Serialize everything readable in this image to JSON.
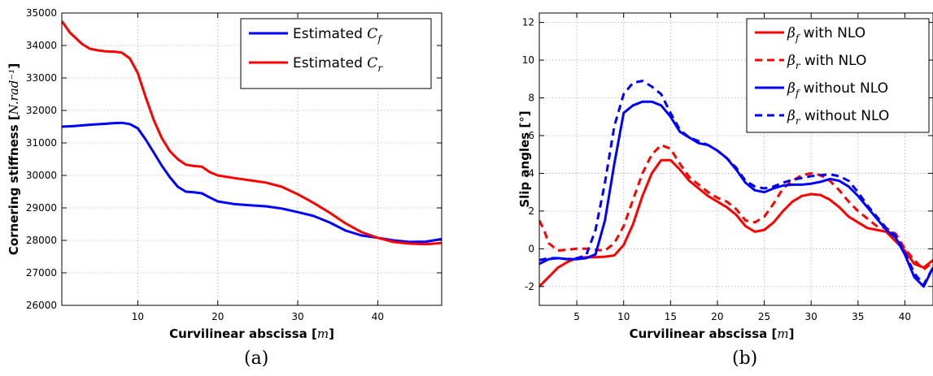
{
  "chart_data": [
    {
      "type": "line",
      "panel_label": "(a)",
      "xlabel": "Curvilinear abscissa  [m]",
      "ylabel": "Cornering stiffness [N.rad⁻¹]",
      "xlim": [
        0.5,
        48
      ],
      "ylim": [
        26000,
        35000
      ],
      "xticks": [
        10,
        20,
        30,
        40
      ],
      "yticks": [
        26000,
        27000,
        28000,
        29000,
        30000,
        31000,
        32000,
        33000,
        34000,
        35000
      ],
      "grid": true,
      "legend_position": "top-right",
      "series": [
        {
          "name": "Estimated C_f",
          "color": "#0000ff",
          "style": "solid",
          "x": [
            0.5,
            2,
            4,
            6,
            7,
            8,
            9,
            10,
            11,
            12,
            13,
            14,
            15,
            16,
            17,
            18,
            19,
            20,
            22,
            24,
            26,
            28,
            30,
            32,
            34,
            36,
            38,
            40,
            42,
            44,
            46,
            48
          ],
          "y": [
            31500,
            31520,
            31560,
            31590,
            31610,
            31620,
            31580,
            31450,
            31100,
            30700,
            30300,
            29950,
            29650,
            29500,
            29480,
            29450,
            29320,
            29200,
            29120,
            29080,
            29050,
            28980,
            28870,
            28750,
            28550,
            28300,
            28150,
            28080,
            28000,
            27950,
            27960,
            28040
          ]
        },
        {
          "name": "Estimated C_r",
          "color": "#ff0000",
          "style": "solid",
          "x": [
            0.5,
            1.5,
            3,
            4,
            5,
            6,
            7,
            8,
            9,
            10,
            11,
            12,
            13,
            14,
            15,
            16,
            17,
            18,
            19,
            20,
            22,
            24,
            26,
            28,
            30,
            32,
            34,
            36,
            38,
            40,
            42,
            44,
            46,
            48
          ],
          "y": [
            34750,
            34400,
            34050,
            33900,
            33850,
            33820,
            33810,
            33780,
            33600,
            33150,
            32400,
            31700,
            31150,
            30750,
            30500,
            30330,
            30290,
            30270,
            30100,
            30000,
            29920,
            29850,
            29780,
            29650,
            29420,
            29150,
            28850,
            28520,
            28250,
            28080,
            27950,
            27900,
            27880,
            27920
          ]
        }
      ]
    },
    {
      "type": "line",
      "panel_label": "(b)",
      "xlabel": "Curvilinear abscissa  [m]",
      "ylabel": "Slip angles [°]",
      "xlim": [
        1,
        43
      ],
      "ylim": [
        -3,
        12.5
      ],
      "xticks": [
        5,
        10,
        15,
        20,
        25,
        30,
        35,
        40
      ],
      "yticks": [
        -2,
        0,
        2,
        4,
        6,
        8,
        10,
        12
      ],
      "grid": true,
      "legend_position": "top-right",
      "series": [
        {
          "name": "β_f with NLO",
          "color": "#ff0000",
          "style": "solid",
          "x": [
            1,
            2,
            3,
            4,
            5,
            6,
            7,
            8,
            9,
            10,
            11,
            12,
            13,
            14,
            15,
            16,
            17,
            18,
            19,
            20,
            21,
            22,
            23,
            24,
            25,
            26,
            27,
            28,
            29,
            30,
            31,
            32,
            33,
            34,
            35,
            36,
            37,
            38,
            39,
            40,
            41,
            42,
            43
          ],
          "y": [
            -2.0,
            -1.5,
            -1.0,
            -0.7,
            -0.5,
            -0.45,
            -0.45,
            -0.42,
            -0.35,
            0.2,
            1.3,
            2.8,
            4.0,
            4.7,
            4.7,
            4.2,
            3.6,
            3.2,
            2.8,
            2.5,
            2.2,
            1.8,
            1.2,
            0.9,
            1.0,
            1.4,
            2.0,
            2.5,
            2.8,
            2.9,
            2.85,
            2.6,
            2.2,
            1.7,
            1.4,
            1.1,
            1.0,
            0.9,
            0.4,
            -0.1,
            -0.8,
            -1.0,
            -0.6
          ]
        },
        {
          "name": "β_r with NLO",
          "color": "#ff0000",
          "style": "dashed",
          "x": [
            1,
            1.5,
            2,
            3,
            4,
            5,
            6,
            7,
            8,
            9,
            10,
            11,
            12,
            13,
            14,
            15,
            16,
            17,
            18,
            19,
            20,
            21,
            22,
            23,
            24,
            25,
            26,
            27,
            28,
            29,
            30,
            31,
            32,
            33,
            34,
            35,
            36,
            37,
            38,
            39,
            40,
            41,
            42,
            43
          ],
          "y": [
            1.5,
            1.0,
            0.3,
            -0.1,
            -0.05,
            0.0,
            0.0,
            -0.05,
            -0.1,
            0.3,
            1.2,
            2.6,
            4.0,
            5.0,
            5.5,
            5.3,
            4.5,
            3.8,
            3.4,
            3.0,
            2.7,
            2.5,
            2.1,
            1.5,
            1.4,
            1.7,
            2.4,
            3.2,
            3.6,
            3.9,
            4.0,
            3.9,
            3.6,
            3.1,
            2.5,
            2.0,
            1.6,
            1.2,
            1.1,
            0.8,
            0.0,
            -0.6,
            -1.1,
            -0.7
          ]
        },
        {
          "name": "β_f without NLO",
          "color": "#0000ff",
          "style": "solid",
          "x": [
            1,
            2,
            3,
            4,
            5,
            6,
            7,
            8,
            9,
            10,
            11,
            12,
            13,
            14,
            15,
            16,
            17,
            18,
            19,
            20,
            21,
            22,
            23,
            24,
            25,
            26,
            27,
            28,
            29,
            30,
            31,
            32,
            33,
            34,
            35,
            36,
            37,
            38,
            39,
            40,
            41,
            42,
            43
          ],
          "y": [
            -0.8,
            -0.55,
            -0.5,
            -0.55,
            -0.55,
            -0.5,
            -0.3,
            1.5,
            4.5,
            7.2,
            7.6,
            7.8,
            7.8,
            7.6,
            7.0,
            6.2,
            5.9,
            5.6,
            5.5,
            5.2,
            4.8,
            4.2,
            3.5,
            3.1,
            3.0,
            3.2,
            3.35,
            3.4,
            3.4,
            3.45,
            3.55,
            3.7,
            3.6,
            3.3,
            2.8,
            2.2,
            1.6,
            1.0,
            0.6,
            -0.3,
            -1.5,
            -2.0,
            -1.0
          ]
        },
        {
          "name": "β_r without NLO",
          "color": "#0000ff",
          "style": "dashed",
          "x": [
            1,
            2,
            3,
            4,
            5,
            6,
            7,
            8,
            9,
            10,
            11,
            12,
            13,
            14,
            15,
            16,
            17,
            18,
            19,
            20,
            21,
            22,
            23,
            24,
            25,
            26,
            27,
            28,
            29,
            30,
            31,
            32,
            33,
            34,
            35,
            36,
            37,
            38,
            39,
            40,
            41,
            42,
            43
          ],
          "y": [
            -0.6,
            -0.5,
            -0.5,
            -0.55,
            -0.5,
            -0.35,
            1.0,
            3.5,
            6.5,
            8.2,
            8.8,
            8.9,
            8.6,
            8.2,
            7.2,
            6.3,
            5.9,
            5.7,
            5.5,
            5.2,
            4.8,
            4.3,
            3.6,
            3.3,
            3.2,
            3.3,
            3.5,
            3.65,
            3.75,
            3.85,
            3.9,
            3.95,
            3.85,
            3.6,
            3.0,
            2.3,
            1.7,
            1.1,
            0.7,
            -0.2,
            -1.3,
            -1.9,
            -1.0
          ]
        }
      ]
    }
  ]
}
